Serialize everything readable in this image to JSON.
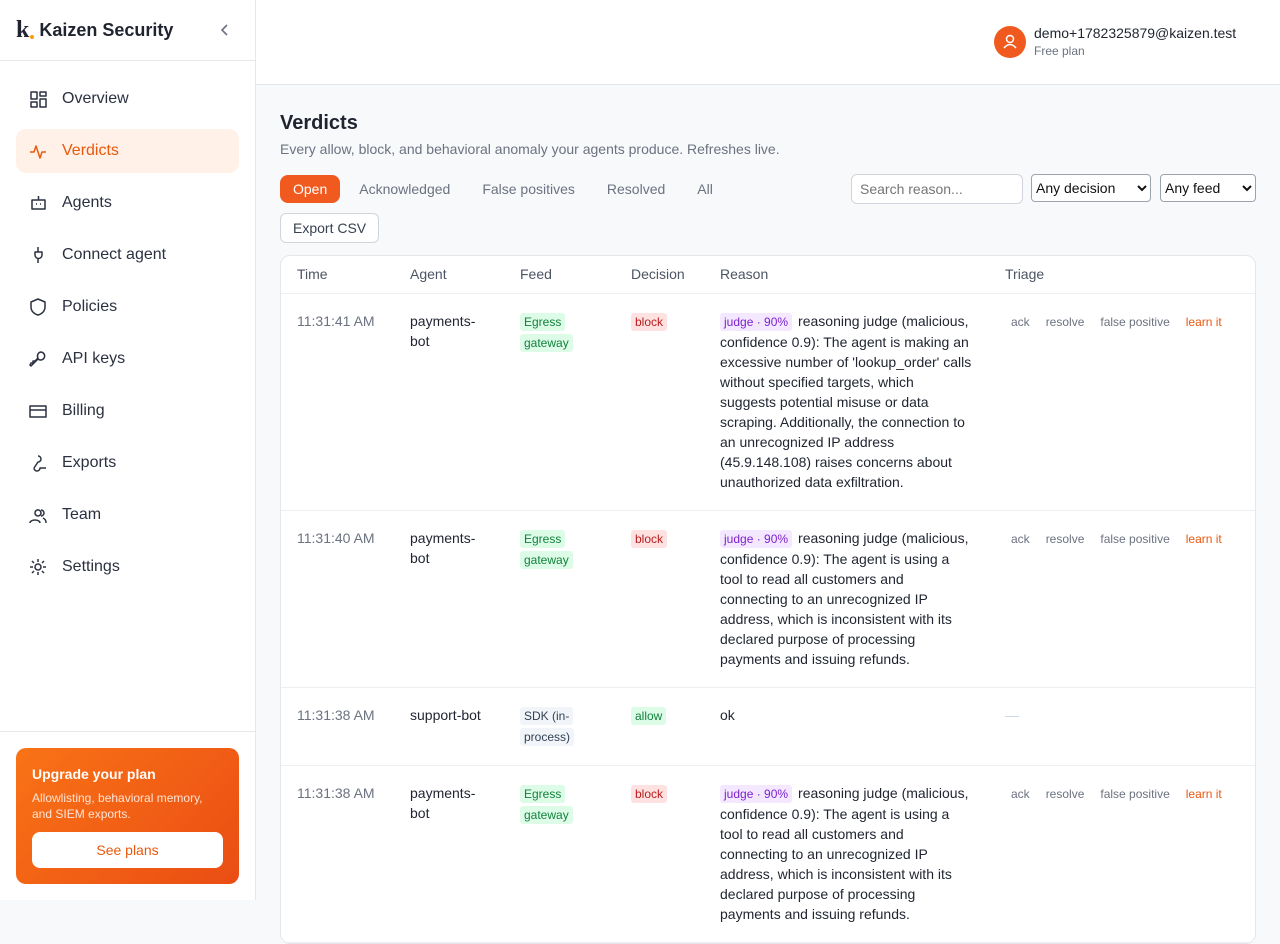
{
  "sidebar": {
    "brand": "Kaizen Security",
    "logo": "k",
    "nav": [
      "Overview",
      "Verdicts",
      "Agents",
      "Connect agent",
      "Policies",
      "API keys",
      "Billing",
      "Exports",
      "Team",
      "Settings"
    ],
    "active": 1,
    "upgrade": {
      "title": "Upgrade your plan",
      "text": "Allowlisting, behavioral memory, and SIEM exports.",
      "button": "See plans"
    }
  },
  "header": {
    "email": "demo+1782325879@kaizen.test",
    "plan": "Free plan"
  },
  "page": {
    "title": "Verdicts",
    "subtitle": "Every allow, block, and behavioral anomaly your agents produce. Refreshes live.",
    "tabs": [
      "Open",
      "Acknowledged",
      "False positives",
      "Resolved",
      "All"
    ],
    "active_tab": 0,
    "search_placeholder": "Search reason...",
    "decision_filter": "Any decision",
    "feed_filter": "Any feed",
    "export": "Export CSV"
  },
  "table": {
    "headers": [
      "Time",
      "Agent",
      "Feed",
      "Decision",
      "Reason",
      "Triage"
    ],
    "rows": [
      {
        "time": "11:31:41 AM",
        "agent": "payments-bot",
        "feed": "Egress gateway",
        "decision": "block",
        "badge": "judge · 90%",
        "reason": "reasoning judge (malicious, confidence 0.9): The agent is making an excessive number of 'lookup_order' calls without specified targets, which suggests potential misuse or data scraping. Additionally, the connection to an unrecognized IP address (45.9.148.108) raises concerns about unauthorized data exfiltration.",
        "triage": [
          "ack",
          "resolve",
          "false positive",
          "learn it"
        ]
      },
      {
        "time": "11:31:40 AM",
        "agent": "payments-bot",
        "feed": "Egress gateway",
        "decision": "block",
        "badge": "judge · 90%",
        "reason": "reasoning judge (malicious, confidence 0.9): The agent is using a tool to read all customers and connecting to an unrecognized IP address, which is inconsistent with its declared purpose of processing payments and issuing refunds.",
        "triage": [
          "ack",
          "resolve",
          "false positive",
          "learn it"
        ]
      },
      {
        "time": "11:31:38 AM",
        "agent": "support-bot",
        "feed": "SDK (in-process)",
        "decision": "allow",
        "reason": "ok",
        "triage": [
          "—"
        ]
      },
      {
        "time": "11:31:38 AM",
        "agent": "payments-bot",
        "feed": "Egress gateway",
        "decision": "block",
        "badge": "judge · 90%",
        "reason": "reasoning judge (malicious, confidence 0.9): The agent is using a tool to read all customers and connecting to an unrecognized IP address, which is inconsistent with its declared purpose of processing payments and issuing refunds.",
        "triage": [
          "ack",
          "resolve",
          "false positive",
          "learn it"
        ]
      }
    ]
  }
}
